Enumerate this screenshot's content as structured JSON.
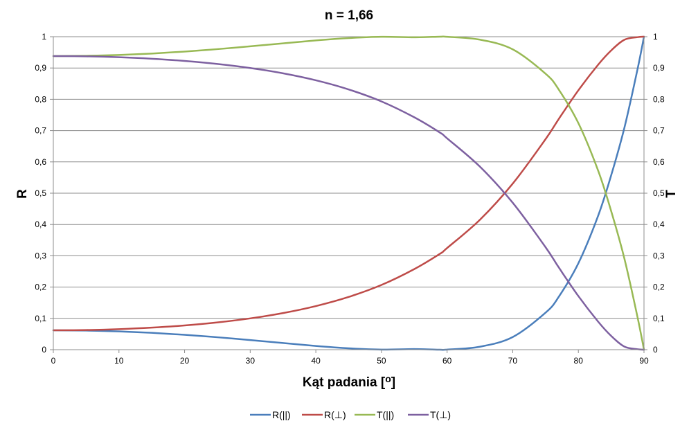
{
  "chart_data": {
    "type": "line",
    "title": "n = 1,66",
    "xlabel": "Kąt padania [o]",
    "ylabel_left": "R",
    "ylabel_right": "T",
    "xlim": [
      0,
      90
    ],
    "ylim": [
      0,
      1
    ],
    "x_ticks": [
      "0",
      "10",
      "20",
      "30",
      "40",
      "50",
      "60",
      "70",
      "80",
      "90"
    ],
    "y_ticks": [
      "0",
      "0,1",
      "0,2",
      "0,3",
      "0,4",
      "0,5",
      "0,6",
      "0,7",
      "0,8",
      "0,9",
      "1"
    ],
    "grid": "horizontal",
    "legend_position": "bottom",
    "x": [
      0,
      5,
      10,
      15,
      20,
      25,
      30,
      35,
      40,
      45,
      50,
      55,
      58.9,
      60,
      65,
      70,
      75,
      77,
      80,
      83,
      85,
      87,
      89,
      90
    ],
    "series": [
      {
        "name": "R(||)",
        "color": "#4a7ebb",
        "values": [
          0.0619,
          0.061,
          0.0583,
          0.0538,
          0.0475,
          0.0397,
          0.0307,
          0.0212,
          0.0119,
          0.0044,
          0.0004,
          0.002,
          0.0,
          0.0003,
          0.0095,
          0.0403,
          0.1182,
          0.1685,
          0.276,
          0.4271,
          0.5572,
          0.7078,
          0.8946,
          1.0
        ]
      },
      {
        "name": "R(⊥)",
        "color": "#be4b48",
        "values": [
          0.0619,
          0.0628,
          0.0656,
          0.0704,
          0.0774,
          0.0871,
          0.1,
          0.117,
          0.1393,
          0.1685,
          0.2068,
          0.2575,
          0.3062,
          0.3248,
          0.4152,
          0.5306,
          0.6725,
          0.7367,
          0.8287,
          0.9101,
          0.956,
          0.99,
          0.9985,
          1.0
        ]
      },
      {
        "name": "T(||)",
        "color": "#98b954",
        "values": [
          0.9381,
          0.939,
          0.9417,
          0.9462,
          0.9525,
          0.9603,
          0.9693,
          0.9788,
          0.9881,
          0.9956,
          0.9996,
          0.998,
          1.0,
          0.9997,
          0.9905,
          0.9597,
          0.8818,
          0.8315,
          0.724,
          0.5729,
          0.4428,
          0.2922,
          0.1054,
          0.0
        ]
      },
      {
        "name": "T(⊥)",
        "color": "#7d60a0",
        "values": [
          0.9381,
          0.9372,
          0.9344,
          0.9296,
          0.9226,
          0.9129,
          0.9,
          0.883,
          0.8607,
          0.8315,
          0.7932,
          0.7425,
          0.6938,
          0.6752,
          0.5848,
          0.4694,
          0.3275,
          0.2633,
          0.1713,
          0.0899,
          0.044,
          0.01,
          0.0015,
          0.0
        ]
      }
    ]
  }
}
